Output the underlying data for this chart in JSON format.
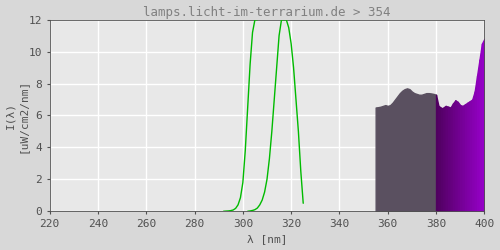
{
  "title": "lamps.licht-im-terrarium.de > 354",
  "xlabel": "λ [nm]",
  "ylabel": "I(λ)\n[uW/cm2/nm]",
  "xlim": [
    220,
    400
  ],
  "ylim": [
    0,
    12
  ],
  "xticks": [
    220,
    240,
    260,
    280,
    300,
    320,
    340,
    360,
    380,
    400
  ],
  "yticks": [
    0,
    2,
    4,
    6,
    8,
    10,
    12
  ],
  "bg_color": "#d8d8d8",
  "plot_bg_color": "#e8e8e8",
  "grid_color": "#ffffff",
  "title_color": "#808080",
  "tick_color": "#505050",
  "green_curve1_x": [
    292,
    293,
    294,
    295,
    296,
    297,
    298,
    299,
    300,
    301,
    302,
    303,
    304,
    305,
    306
  ],
  "green_curve1_y": [
    0.0,
    0.01,
    0.02,
    0.04,
    0.08,
    0.18,
    0.4,
    0.85,
    1.8,
    3.8,
    6.5,
    9.2,
    11.2,
    12.0,
    12.0
  ],
  "green_curve2_x": [
    302,
    303,
    304,
    305,
    306,
    307,
    308,
    309,
    310,
    311,
    312,
    313,
    314,
    315,
    316,
    317,
    318,
    319,
    320,
    321,
    322,
    323,
    324,
    325
  ],
  "green_curve2_y": [
    0.0,
    0.02,
    0.05,
    0.1,
    0.2,
    0.4,
    0.7,
    1.2,
    2.0,
    3.3,
    5.0,
    7.0,
    9.0,
    11.0,
    12.0,
    12.0,
    12.0,
    11.5,
    10.5,
    9.0,
    7.0,
    5.0,
    2.5,
    0.5
  ],
  "gray_area_x": [
    355,
    356,
    357,
    358,
    359,
    360,
    361,
    362,
    363,
    364,
    365,
    366,
    367,
    368,
    369,
    370,
    371,
    372,
    373,
    374,
    375,
    376,
    377,
    378,
    379,
    380
  ],
  "gray_area_y": [
    6.5,
    6.52,
    6.55,
    6.6,
    6.65,
    6.6,
    6.65,
    6.8,
    7.0,
    7.2,
    7.4,
    7.55,
    7.65,
    7.7,
    7.65,
    7.5,
    7.4,
    7.35,
    7.3,
    7.3,
    7.35,
    7.4,
    7.4,
    7.38,
    7.35,
    7.3
  ],
  "purple_area_x": [
    380,
    381,
    382,
    383,
    384,
    385,
    386,
    387,
    388,
    389,
    390,
    391,
    392,
    393,
    394,
    395,
    396,
    397,
    398,
    399,
    400
  ],
  "purple_area_y": [
    7.3,
    6.6,
    6.5,
    6.5,
    6.6,
    6.55,
    6.5,
    6.75,
    6.95,
    6.85,
    6.65,
    6.6,
    6.7,
    6.8,
    6.9,
    7.0,
    7.5,
    8.5,
    9.5,
    10.5,
    10.8
  ],
  "gray_color": "#5a5060",
  "purple_color_start": "#5a1070",
  "purple_color_end": "#8800cc",
  "green_color": "#00bb00",
  "font_family": "monospace",
  "title_fontsize": 9,
  "label_fontsize": 8,
  "tick_fontsize": 8
}
